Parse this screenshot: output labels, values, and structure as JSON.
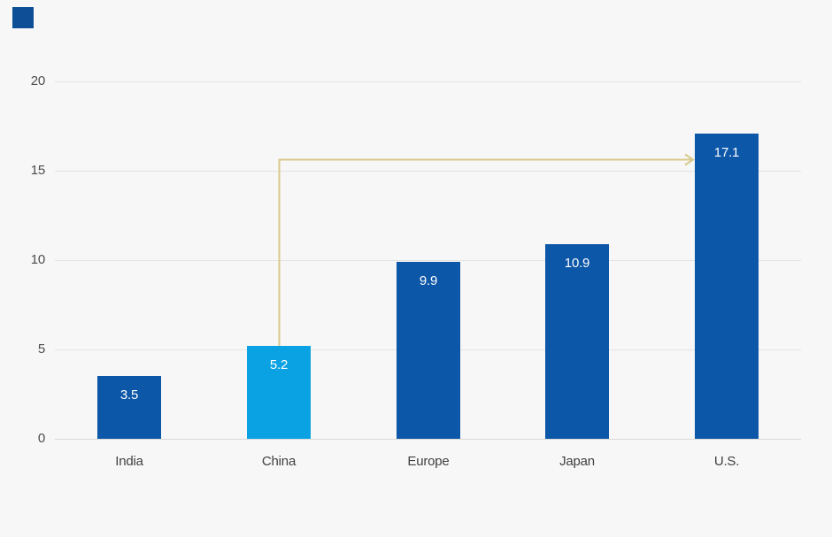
{
  "colors": {
    "background": "#f7f7f7",
    "brand_mark": "#0d4e97",
    "gridline": "#e3e3e3",
    "axis_line": "#d9d9d9",
    "tick_text": "#4c4c4c",
    "category_text": "#3f3f3f",
    "bar_default": "#0d57a8",
    "bar_highlight": "#0aa2e2",
    "value_text": "#ffffff",
    "arrow": "#d8c88a"
  },
  "chart_data": {
    "type": "bar",
    "title": "",
    "xlabel": "",
    "ylabel": "",
    "categories": [
      "India",
      "China",
      "Europe",
      "Japan",
      "U.S."
    ],
    "values": [
      3.5,
      5.2,
      9.9,
      10.9,
      17.1
    ],
    "value_labels": [
      "3.5",
      "5.2",
      "9.9",
      "10.9",
      "17.1"
    ],
    "bar_colors": [
      "#0d57a8",
      "#0aa2e2",
      "#0d57a8",
      "#0d57a8",
      "#0d57a8"
    ],
    "ylim": [
      0,
      20
    ],
    "yticks": [
      0,
      5,
      10,
      15,
      20
    ],
    "ytick_labels": [
      "0",
      "5",
      "10",
      "15",
      "20"
    ],
    "grid": true,
    "legend": false,
    "annotation": {
      "type": "arrow",
      "from_category": "China",
      "to_category": "U.S.",
      "at_value": 15.6,
      "color": "#d8c88a"
    }
  }
}
